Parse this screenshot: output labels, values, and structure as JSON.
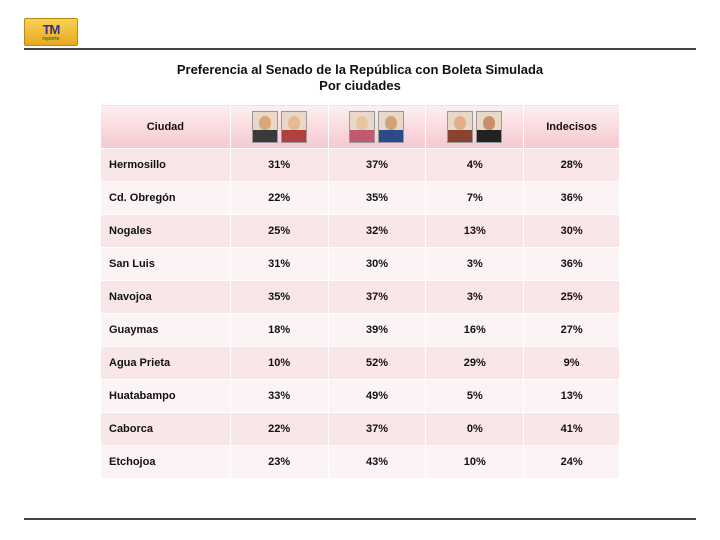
{
  "logo": {
    "main": "TM",
    "sub": "reporte"
  },
  "title_line1": "Preferencia al Senado de la República con Boleta Simulada",
  "title_line2": "Por ciudades",
  "table": {
    "headers": {
      "city": "Ciudad",
      "indecisos": "Indecisos"
    },
    "candidate_groups": [
      {
        "portraits": [
          {
            "skin": "#d9a77a",
            "suit": "#3a3a3a"
          },
          {
            "skin": "#e6b990",
            "suit": "#b04040"
          }
        ]
      },
      {
        "portraits": [
          {
            "skin": "#e8c4a0",
            "suit": "#c05a70"
          },
          {
            "skin": "#d4a278",
            "suit": "#2a4a8a"
          }
        ]
      },
      {
        "portraits": [
          {
            "skin": "#e2b088",
            "suit": "#884430"
          },
          {
            "skin": "#c89068",
            "suit": "#222222"
          }
        ]
      }
    ],
    "rows": [
      {
        "city": "Hermosillo",
        "v": [
          "31%",
          "37%",
          "4%",
          "28%"
        ]
      },
      {
        "city": "Cd. Obregón",
        "v": [
          "22%",
          "35%",
          "7%",
          "36%"
        ]
      },
      {
        "city": "Nogales",
        "v": [
          "25%",
          "32%",
          "13%",
          "30%"
        ]
      },
      {
        "city": "San Luis",
        "v": [
          "31%",
          "30%",
          "3%",
          "36%"
        ]
      },
      {
        "city": "Navojoa",
        "v": [
          "35%",
          "37%",
          "3%",
          "25%"
        ]
      },
      {
        "city": "Guaymas",
        "v": [
          "18%",
          "39%",
          "16%",
          "27%"
        ]
      },
      {
        "city": "Agua Prieta",
        "v": [
          "10%",
          "52%",
          "29%",
          "9%"
        ]
      },
      {
        "city": "Huatabampo",
        "v": [
          "33%",
          "49%",
          "5%",
          "13%"
        ]
      },
      {
        "city": "Caborca",
        "v": [
          "22%",
          "37%",
          "0%",
          "41%"
        ]
      },
      {
        "city": "Etchojoa",
        "v": [
          "23%",
          "43%",
          "10%",
          "24%"
        ]
      }
    ]
  },
  "colors": {
    "header_grad_top": "#fdeff0",
    "header_grad_bot": "#f6c8cf",
    "row_odd": "#f9e6e9",
    "row_even": "#fcf3f4",
    "rule": "#444444",
    "text": "#111111"
  }
}
